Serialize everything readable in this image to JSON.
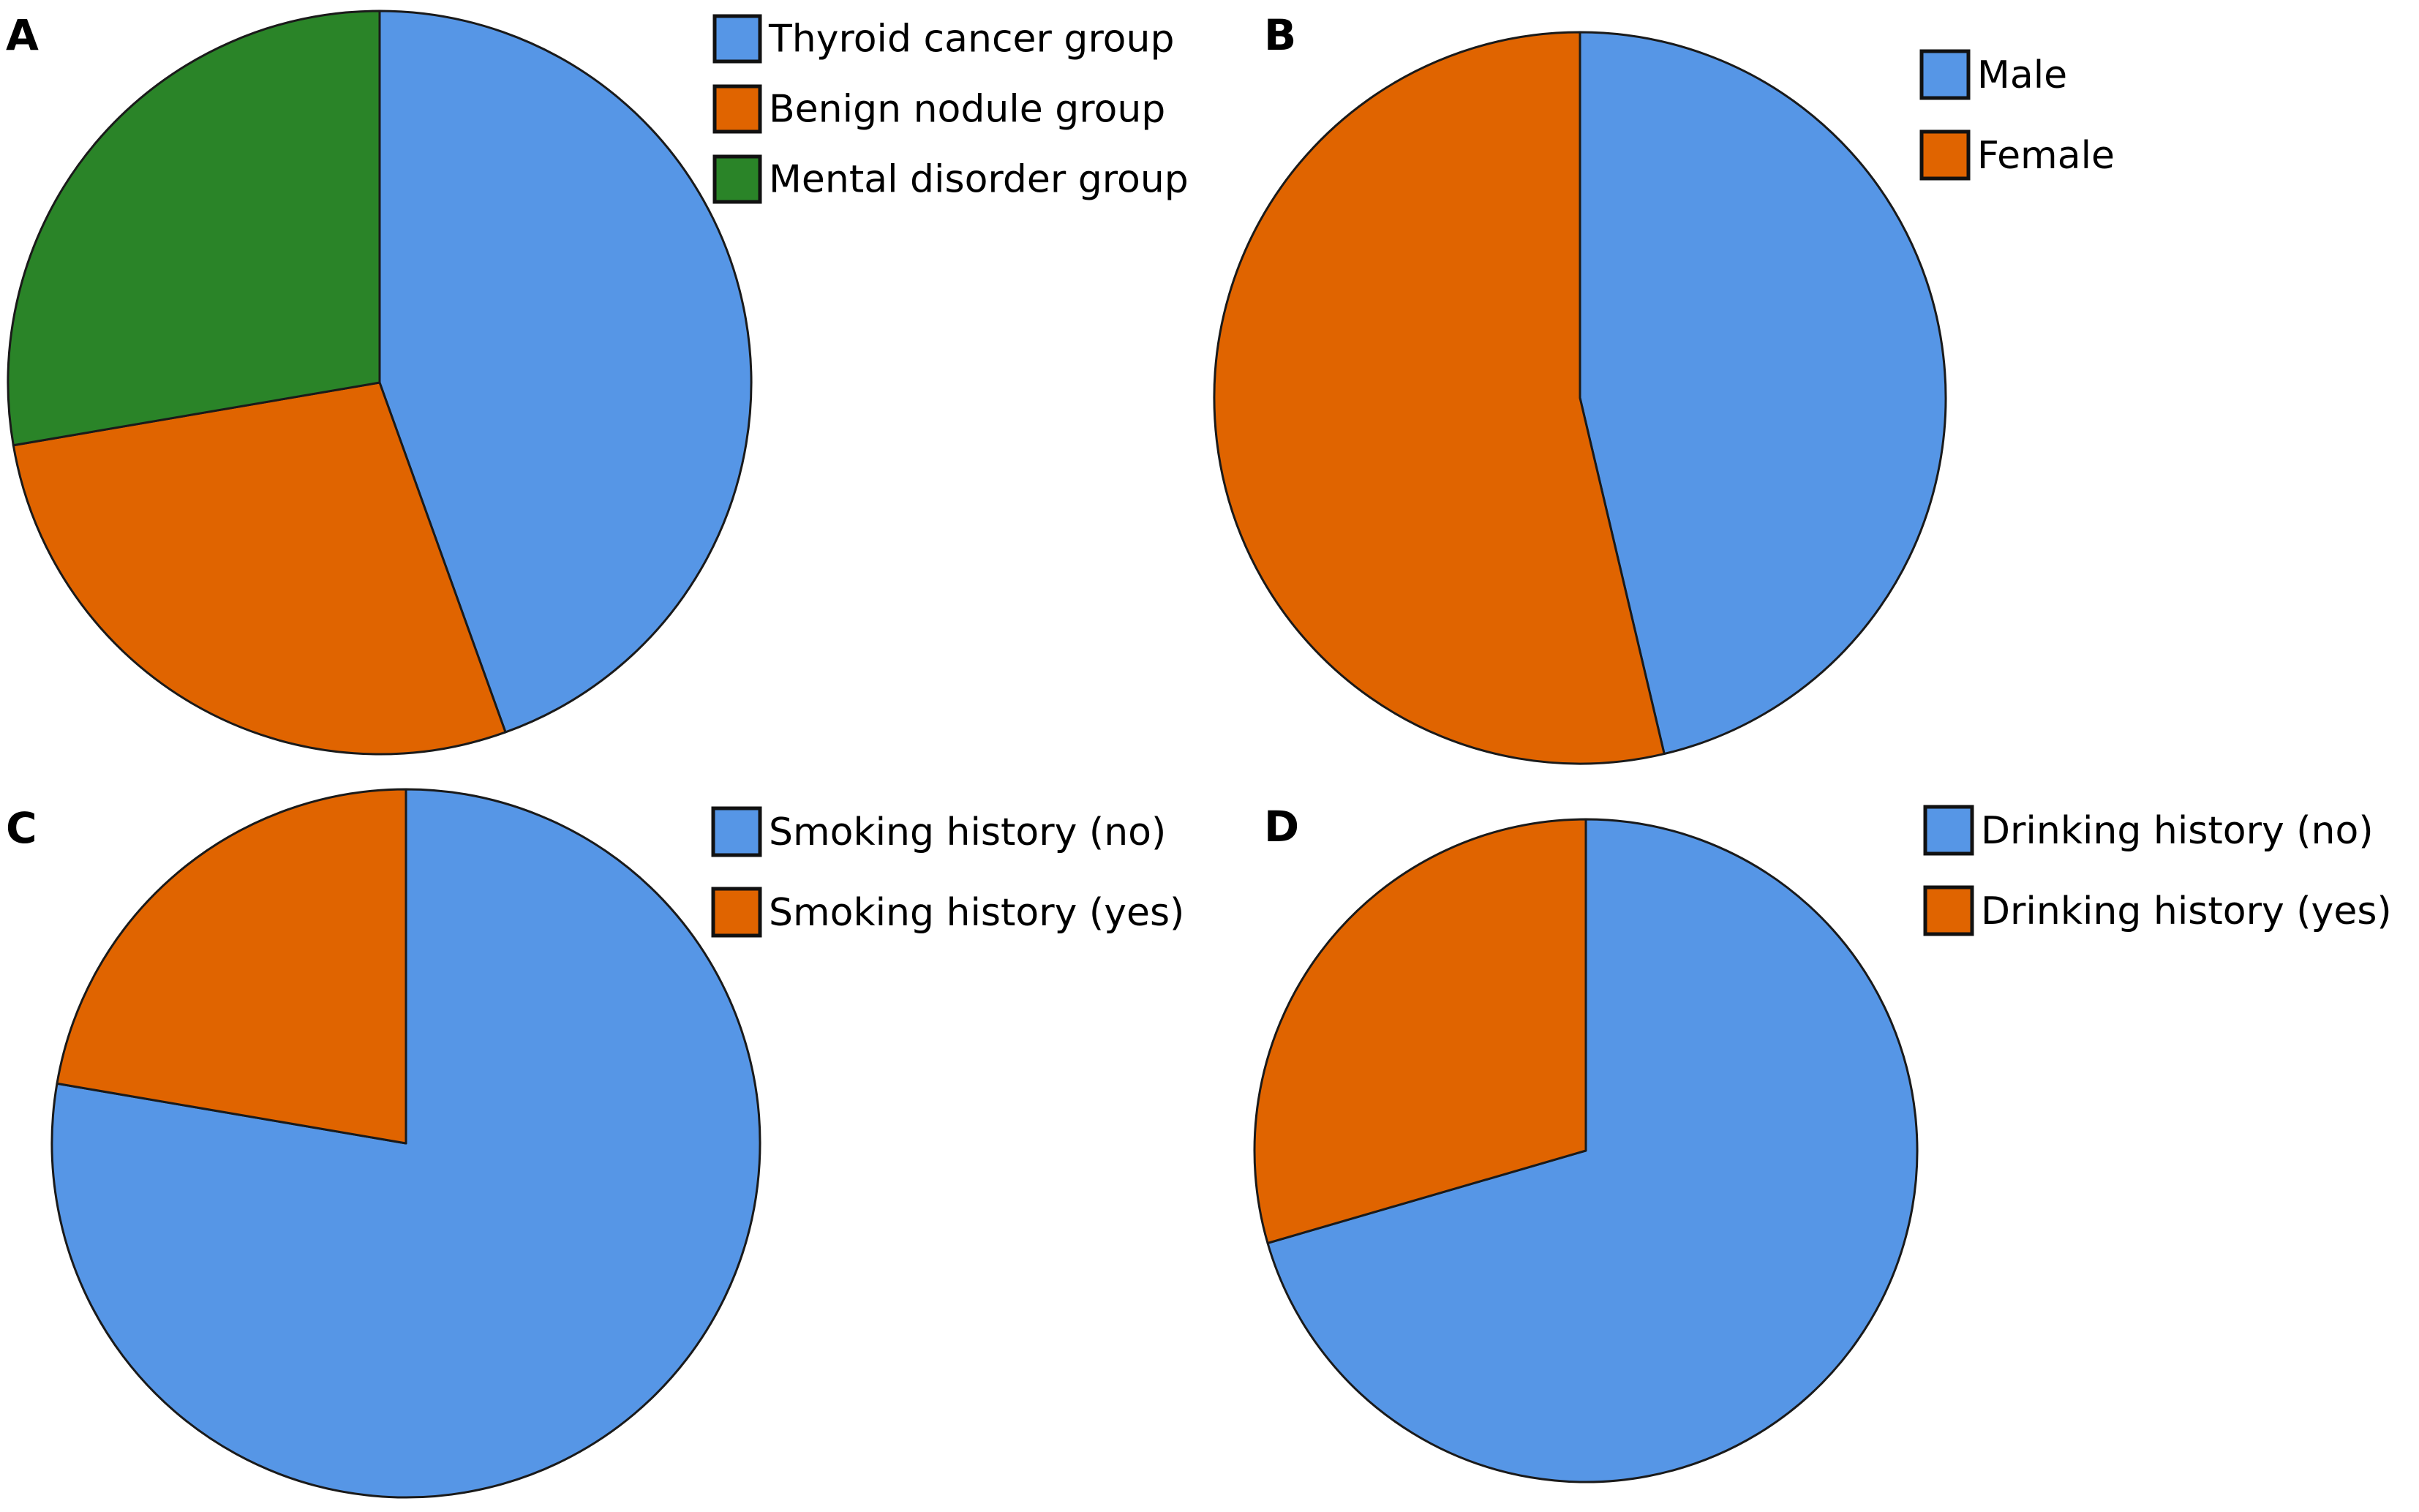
{
  "figure": {
    "panel_labels": [
      "A",
      "B",
      "C",
      "D"
    ]
  },
  "colors": {
    "blue": "#5696e6",
    "orange": "#e06400",
    "green": "#2a8428",
    "outline": "#1a1a1a"
  },
  "chart_data": [
    {
      "type": "pie",
      "panel": "A",
      "title": "",
      "start_angle": "12 o'clock",
      "direction": "clockwise",
      "legend_position": "top-right",
      "slices": [
        {
          "label": "Thyroid cancer group",
          "value": 44.5,
          "color": "#5696e6"
        },
        {
          "label": "Benign nodule group",
          "value": 27.8,
          "color": "#e06400"
        },
        {
          "label": "Mental disorder group",
          "value": 27.7,
          "color": "#2a8428"
        }
      ],
      "unit": "percent (estimated)"
    },
    {
      "type": "pie",
      "panel": "B",
      "title": "",
      "start_angle": "12 o'clock",
      "direction": "clockwise",
      "legend_position": "top-right",
      "slices": [
        {
          "label": "Male",
          "value": 46.3,
          "color": "#5696e6"
        },
        {
          "label": "Female",
          "value": 53.7,
          "color": "#e06400"
        }
      ],
      "unit": "percent (estimated)"
    },
    {
      "type": "pie",
      "panel": "C",
      "title": "",
      "start_angle": "12 o'clock",
      "direction": "clockwise",
      "legend_position": "top-right",
      "slices": [
        {
          "label": "Smoking history (no)",
          "value": 77.7,
          "color": "#5696e6"
        },
        {
          "label": "Smoking history (yes)",
          "value": 22.3,
          "color": "#e06400"
        }
      ],
      "unit": "percent (estimated)"
    },
    {
      "type": "pie",
      "panel": "D",
      "title": "",
      "start_angle": "12 o'clock",
      "direction": "clockwise",
      "legend_position": "top-right",
      "slices": [
        {
          "label": "Drinking history (no)",
          "value": 70.5,
          "color": "#5696e6"
        },
        {
          "label": "Drinking history (yes)",
          "value": 29.5,
          "color": "#e06400"
        }
      ],
      "unit": "percent (estimated)"
    }
  ]
}
